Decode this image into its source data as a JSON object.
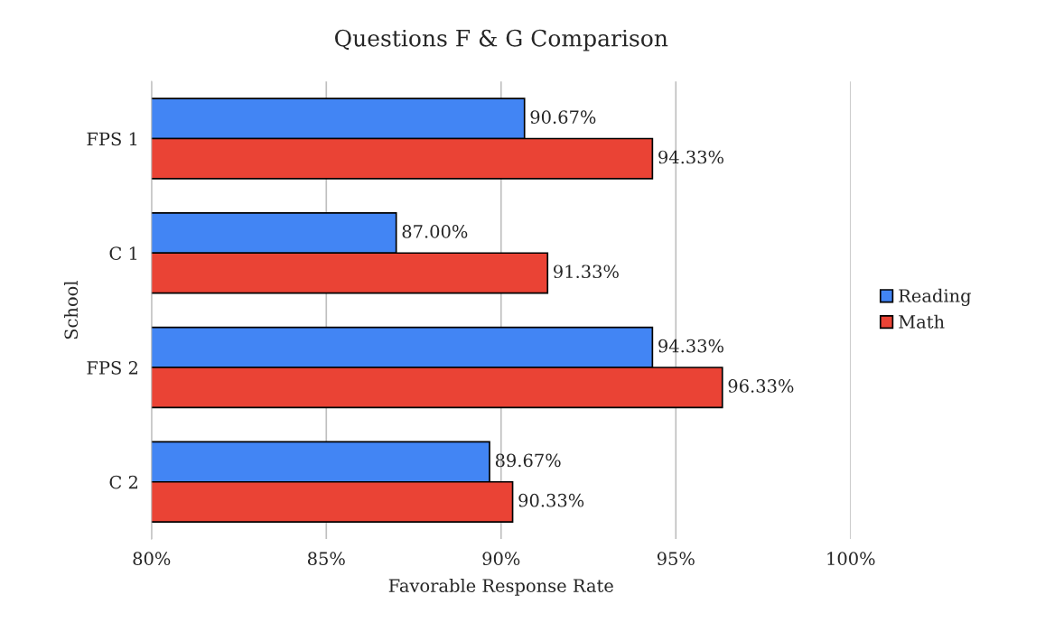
{
  "chart_data": {
    "type": "bar",
    "orientation": "horizontal",
    "title": "Questions F & G Comparison",
    "xlabel": "Favorable Response Rate",
    "ylabel": "School",
    "categories": [
      "FPS 1",
      "C 1",
      "FPS 2",
      "C 2"
    ],
    "series": [
      {
        "name": "Reading",
        "color": "#4285f4",
        "values": [
          90.67,
          87.0,
          94.33,
          89.67
        ],
        "value_labels": [
          "90.67%",
          "87.00%",
          "94.33%",
          "89.67%"
        ]
      },
      {
        "name": "Math",
        "color": "#ea4335",
        "values": [
          94.33,
          91.33,
          96.33,
          90.33
        ],
        "value_labels": [
          "94.33%",
          "91.33%",
          "96.33%",
          "90.33%"
        ]
      }
    ],
    "xlim": [
      80,
      100
    ],
    "xticks": [
      {
        "value": 80,
        "label": "80%"
      },
      {
        "value": 85,
        "label": "85%"
      },
      {
        "value": 90,
        "label": "90%"
      },
      {
        "value": 95,
        "label": "95%"
      },
      {
        "value": 100,
        "label": "100%"
      }
    ],
    "grid": "x",
    "legend": "right"
  }
}
